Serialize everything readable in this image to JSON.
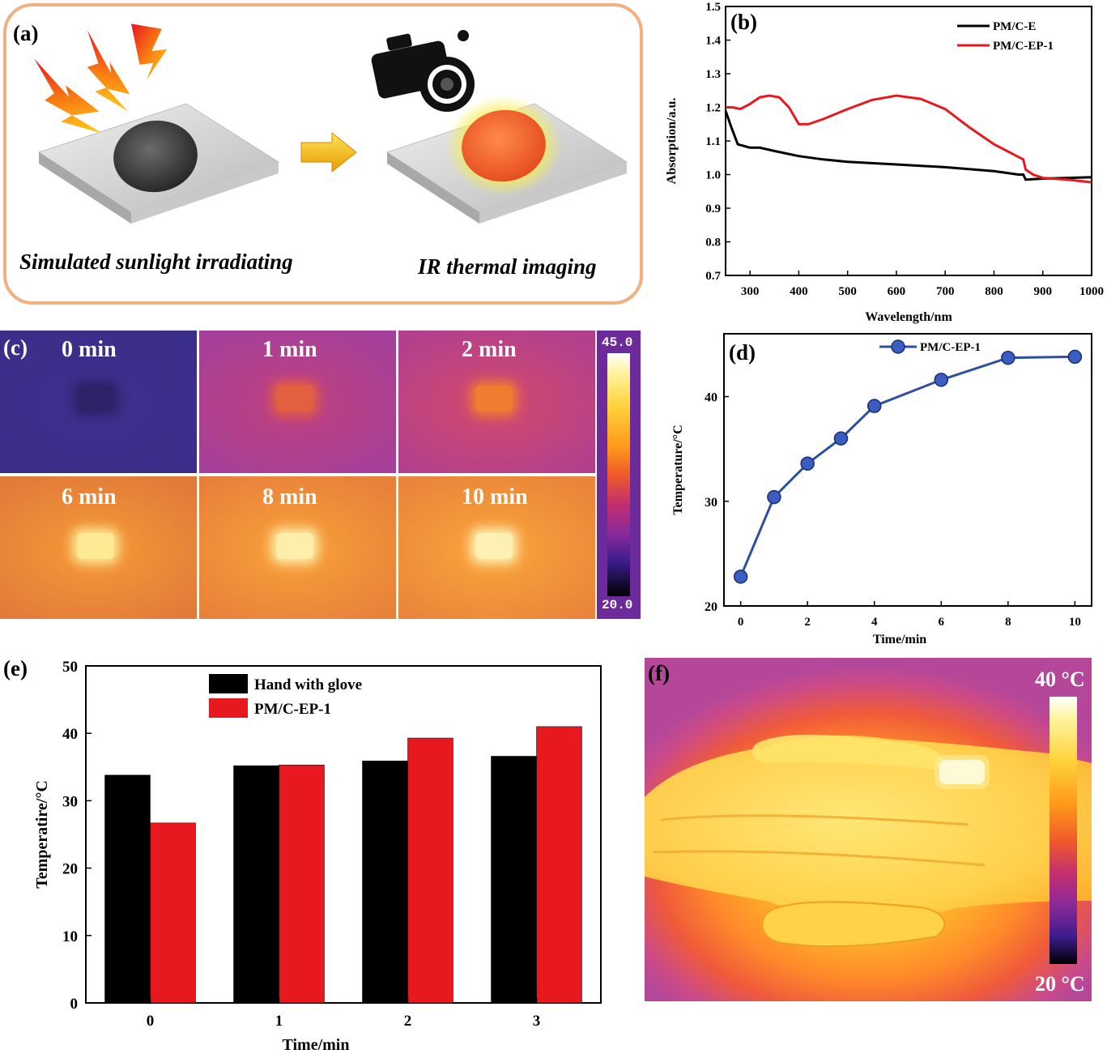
{
  "panels": {
    "a": {
      "label": "(a)",
      "caption_left": "Simulated sunlight irradiating",
      "caption_right": "IR thermal imaging",
      "icons": [
        "lightning-icon",
        "arrow-right-icon",
        "camera-icon"
      ]
    },
    "c": {
      "label": "(c)",
      "tiles": [
        {
          "time": "0 min",
          "level": 0.05
        },
        {
          "time": "1 min",
          "level": 0.35
        },
        {
          "time": "2 min",
          "level": 0.45
        },
        {
          "time": "6 min",
          "level": 0.75
        },
        {
          "time": "8 min",
          "level": 0.8
        },
        {
          "time": "10 min",
          "level": 0.82
        }
      ],
      "scale_max": "45.0",
      "scale_min": "20.0"
    },
    "f": {
      "label": "(f)",
      "scale_max": "40 °C",
      "scale_min": "20 °C"
    }
  },
  "chart_data": [
    {
      "panel": "(b)",
      "type": "line",
      "xlabel": "Wavelength/nm",
      "ylabel": "Absorption/a.u.",
      "xlim": [
        250,
        1000
      ],
      "ylim": [
        0.7,
        1.5
      ],
      "xticks": [
        300,
        400,
        500,
        600,
        700,
        800,
        900,
        1000
      ],
      "yticks": [
        0.7,
        0.8,
        0.9,
        1.0,
        1.1,
        1.2,
        1.3,
        1.4,
        1.5
      ],
      "legend_position": "top-right",
      "series": [
        {
          "name": "PM/C-E",
          "color": "#000000",
          "x": [
            250,
            262,
            275,
            300,
            320,
            350,
            400,
            450,
            500,
            600,
            700,
            800,
            850,
            860,
            865,
            900,
            950,
            1000
          ],
          "y": [
            1.19,
            1.14,
            1.09,
            1.08,
            1.08,
            1.07,
            1.055,
            1.045,
            1.038,
            1.03,
            1.022,
            1.01,
            1.0,
            1.0,
            0.985,
            0.988,
            0.99,
            0.992
          ]
        },
        {
          "name": "PM/C-EP-1",
          "color": "#e8191e",
          "x": [
            250,
            265,
            280,
            300,
            320,
            340,
            360,
            380,
            400,
            420,
            450,
            500,
            550,
            600,
            650,
            700,
            750,
            800,
            840,
            860,
            865,
            880,
            900,
            950,
            1000
          ],
          "y": [
            1.2,
            1.2,
            1.195,
            1.21,
            1.23,
            1.235,
            1.23,
            1.2,
            1.15,
            1.15,
            1.165,
            1.195,
            1.222,
            1.235,
            1.225,
            1.195,
            1.14,
            1.09,
            1.06,
            1.045,
            1.015,
            1.0,
            0.99,
            0.985,
            0.977
          ]
        }
      ]
    },
    {
      "panel": "(d)",
      "type": "line",
      "xlabel": "Time/min",
      "ylabel": "Temperature/°C",
      "xlim": [
        -0.5,
        10.5
      ],
      "ylim": [
        20,
        46
      ],
      "xticks": [
        0,
        2,
        4,
        6,
        8,
        10
      ],
      "yticks": [
        20,
        30,
        40
      ],
      "legend_position": "top",
      "series": [
        {
          "name": "PM/C-EP-1",
          "color": "#2e4ea0",
          "x": [
            0,
            1,
            2,
            3,
            4,
            6,
            8,
            10
          ],
          "y": [
            22.8,
            30.4,
            33.6,
            36.0,
            39.1,
            41.6,
            43.7,
            43.8
          ]
        }
      ]
    },
    {
      "panel": "(e)",
      "type": "bar",
      "xlabel": "Time/min",
      "ylabel": "Temperatire/°C",
      "ylim": [
        0,
        50
      ],
      "yticks": [
        0,
        10,
        20,
        30,
        40,
        50
      ],
      "categories": [
        "0",
        "1",
        "2",
        "3"
      ],
      "legend_position": "top-center",
      "series": [
        {
          "name": "Hand with glove",
          "color": "#000000",
          "values": [
            33.8,
            35.2,
            35.9,
            36.6
          ]
        },
        {
          "name": "PM/C-EP-1",
          "color": "#e8191e",
          "values": [
            26.7,
            35.3,
            39.3,
            41.0
          ]
        }
      ]
    }
  ]
}
